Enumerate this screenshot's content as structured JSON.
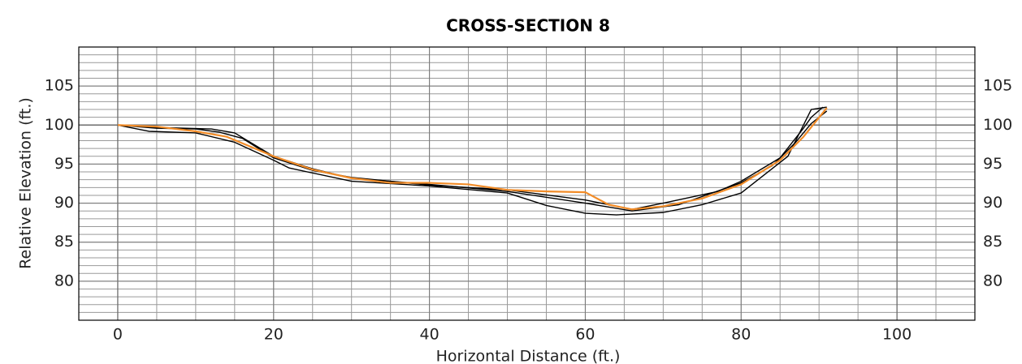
{
  "chart_data": {
    "type": "line",
    "title": "CROSS-SECTION 8",
    "xlabel": "Horizontal Distance (ft.)",
    "ylabel": "Relative Elevation (ft.)",
    "xlim": [
      -5,
      110
    ],
    "ylim": [
      75,
      110
    ],
    "xticks": [
      0,
      20,
      40,
      60,
      80,
      100
    ],
    "yticks": [
      80,
      85,
      90,
      95,
      100,
      105
    ],
    "grid": true,
    "x_grid_step": 5,
    "y_grid_step": 1,
    "xlines": [
      0,
      100
    ],
    "ylines": [
      100
    ],
    "right_axis_labels": true,
    "series": [
      {
        "color": "#000000",
        "x": [
          0,
          4,
          10,
          15,
          20,
          22,
          30,
          40,
          50,
          55,
          60,
          64,
          70,
          75,
          80,
          86,
          89,
          91
        ],
        "values": [
          100,
          99.2,
          99,
          97.8,
          95.5,
          94.5,
          92.8,
          92.2,
          91.3,
          89.7,
          88.7,
          88.5,
          88.8,
          89.8,
          91.3,
          96,
          102,
          102.3
        ]
      },
      {
        "color": "#000000",
        "x": [
          0,
          5,
          10,
          13,
          16,
          20,
          25,
          30,
          40,
          50,
          60,
          66,
          70,
          77,
          80,
          85,
          88,
          89,
          90.5
        ],
        "values": [
          100,
          99.6,
          99.5,
          99.1,
          98.3,
          95.8,
          94.2,
          93.3,
          92.3,
          91.7,
          90.4,
          89.2,
          90,
          91.5,
          92.8,
          95.8,
          99.6,
          101,
          102.3
        ]
      },
      {
        "color": "#000000",
        "x": [
          0,
          5,
          12,
          15,
          20,
          25,
          30,
          40,
          50,
          60,
          66,
          72,
          80,
          84,
          87,
          89,
          91
        ],
        "values": [
          100,
          99.7,
          99.5,
          99,
          96,
          94.4,
          93.2,
          92.4,
          91.5,
          90,
          89,
          89.8,
          92.6,
          94.8,
          97.8,
          100.2,
          101.8
        ]
      },
      {
        "color": "#f28c28",
        "x": [
          0,
          5,
          10,
          14,
          20,
          25,
          30,
          35,
          40,
          45,
          50,
          55,
          60,
          63,
          66,
          70,
          75,
          80,
          85,
          88,
          91
        ],
        "values": [
          100,
          99.8,
          99.2,
          98.5,
          96,
          94.3,
          93.2,
          92.6,
          92.6,
          92.4,
          91.7,
          91.5,
          91.4,
          89.8,
          89.2,
          89.6,
          90.6,
          92.4,
          95.5,
          98.5,
          102.2
        ]
      }
    ]
  }
}
